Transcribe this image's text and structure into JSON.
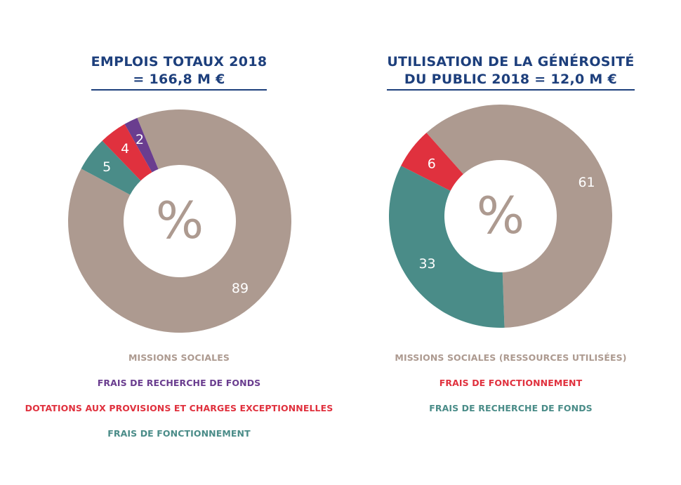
{
  "colors": {
    "title": "#1d3f7c",
    "missions_sociales": "#ad9a90",
    "frais_recherche_fonds_left": "#6a3d8f",
    "dotations_provisions": "#e0313e",
    "frais_fonctionnement_left": "#4a8c88",
    "frais_fonctionnement_right": "#e0313e",
    "frais_recherche_fonds_right": "#4a8c88"
  },
  "chart_data": [
    {
      "type": "pie",
      "donut": true,
      "title_lines": [
        "EMPLOIS TOTAUX 2018",
        "= 166,8 M €"
      ],
      "center_label": "%",
      "slices": [
        {
          "label": "MISSIONS SOCIALES",
          "value": 89,
          "value_label": "89",
          "color": "#ad9a90"
        },
        {
          "label": "FRAIS DE RECHERCHE DE FONDS",
          "value": 2,
          "value_label": "2",
          "color": "#6a3d8f"
        },
        {
          "label": "DOTATIONS AUX PROVISIONS ET CHARGES EXCEPTIONNELLES",
          "value": 4,
          "value_label": "4",
          "color": "#e0313e"
        },
        {
          "label": "FRAIS DE FONCTIONNEMENT",
          "value": 5,
          "value_label": "5",
          "color": "#4a8c88"
        }
      ],
      "legend_placement": "bottom"
    },
    {
      "type": "pie",
      "donut": true,
      "title_lines": [
        "UTILISATION DE LA GÉNÉROSITÉ",
        "DU PUBLIC 2018 = 12,0 M €"
      ],
      "center_label": "%",
      "slices": [
        {
          "label": "MISSIONS SOCIALES (RESSOURCES UTILISÉES)",
          "value": 61,
          "value_label": "61",
          "color": "#ad9a90"
        },
        {
          "label": "FRAIS DE FONCTIONNEMENT",
          "value": 6,
          "value_label": "6",
          "color": "#e0313e"
        },
        {
          "label": "FRAIS DE RECHERCHE DE FONDS",
          "value": 33,
          "value_label": "33",
          "color": "#4a8c88"
        }
      ],
      "legend_placement": "bottom"
    }
  ]
}
